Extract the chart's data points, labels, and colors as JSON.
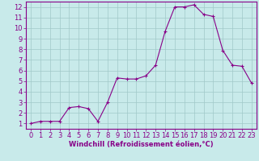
{
  "x": [
    0,
    1,
    2,
    3,
    4,
    5,
    6,
    7,
    8,
    9,
    10,
    11,
    12,
    13,
    14,
    15,
    16,
    17,
    18,
    19,
    20,
    21,
    22,
    23
  ],
  "y": [
    1.0,
    1.2,
    1.2,
    1.2,
    2.5,
    2.6,
    2.4,
    1.2,
    3.0,
    5.3,
    5.2,
    5.2,
    5.5,
    6.5,
    9.7,
    12.0,
    12.0,
    12.2,
    11.3,
    11.1,
    7.9,
    6.5,
    6.4,
    4.8
  ],
  "line_color": "#880088",
  "marker": "+",
  "marker_size": 3,
  "bg_color": "#c8eaea",
  "grid_color": "#a0c8c8",
  "xlabel": "Windchill (Refroidissement éolien,°C)",
  "xlim": [
    -0.5,
    23.5
  ],
  "ylim": [
    0.5,
    12.5
  ],
  "yticks": [
    1,
    2,
    3,
    4,
    5,
    6,
    7,
    8,
    9,
    10,
    11,
    12
  ],
  "xticks": [
    0,
    1,
    2,
    3,
    4,
    5,
    6,
    7,
    8,
    9,
    10,
    11,
    12,
    13,
    14,
    15,
    16,
    17,
    18,
    19,
    20,
    21,
    22,
    23
  ],
  "xlabel_color": "#880088",
  "xlabel_fontsize": 6,
  "tick_fontsize": 6,
  "axis_color": "#880088",
  "spine_color": "#880088",
  "linewidth": 0.8
}
